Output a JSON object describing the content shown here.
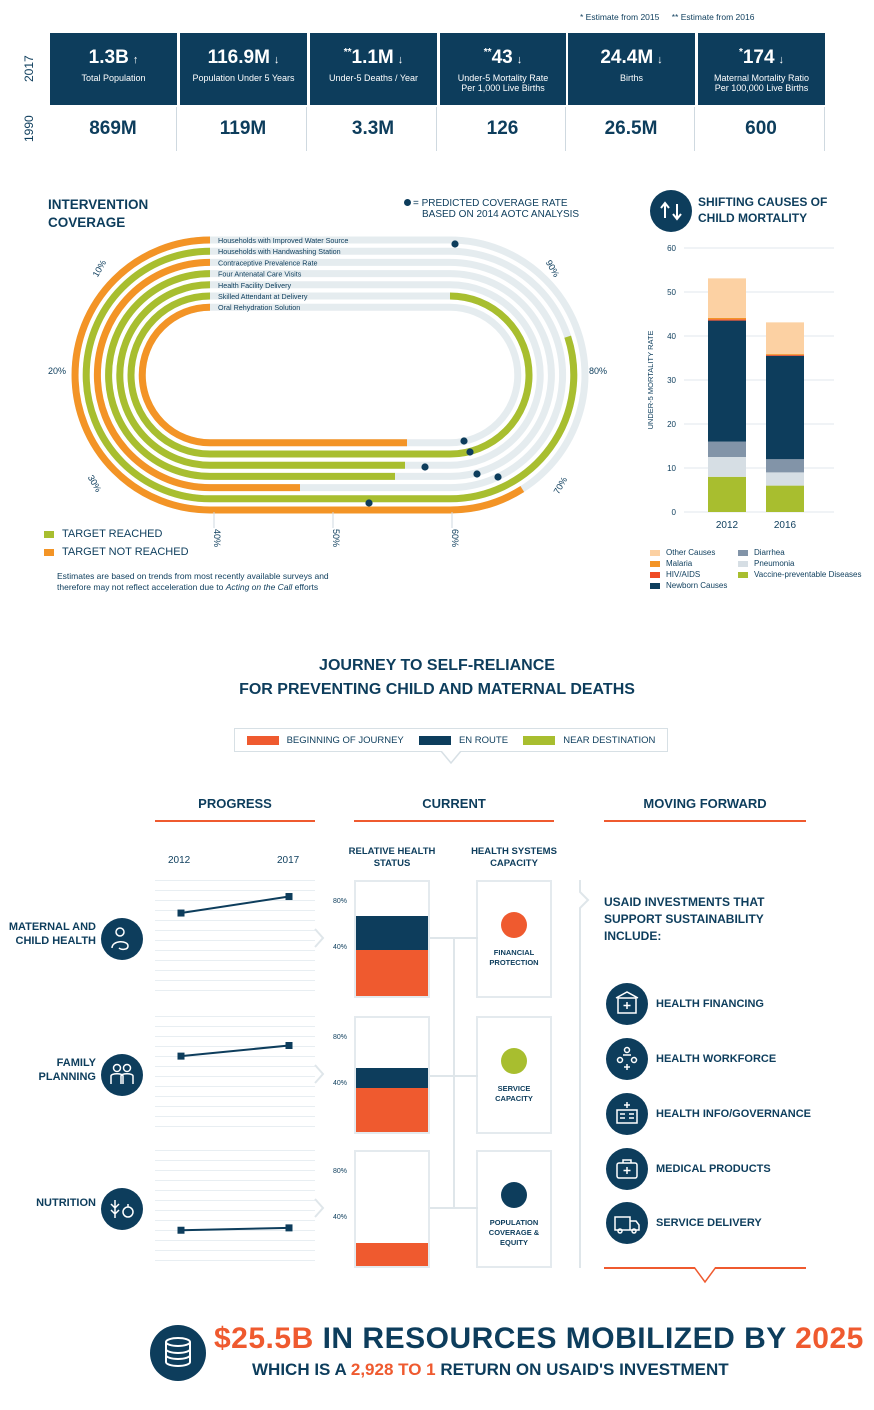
{
  "notes": {
    "single": "* Estimate from 2015",
    "double": "** Estimate from 2016"
  },
  "years": {
    "top": "2017",
    "bottom": "1990"
  },
  "stats": [
    {
      "prefix": "",
      "value": "1.3B",
      "arrow": "↑",
      "label": "Total Population",
      "label2": "",
      "past": "869M"
    },
    {
      "prefix": "",
      "value": "116.9M",
      "arrow": "↓",
      "label": "Population Under 5 Years",
      "label2": "",
      "past": "119M"
    },
    {
      "prefix": "**",
      "value": "1.1M",
      "arrow": "↓",
      "label": "Under-5 Deaths / Year",
      "label2": "",
      "past": "3.3M"
    },
    {
      "prefix": "**",
      "value": "43",
      "arrow": "↓",
      "label": "Under-5 Mortality Rate",
      "label2": "Per 1,000 Live Births",
      "past": "126"
    },
    {
      "prefix": "",
      "value": "24.4M",
      "arrow": "↓",
      "label": "Births",
      "label2": "",
      "past": "26.5M"
    },
    {
      "prefix": "*",
      "value": "174",
      "arrow": "↓",
      "label": "Maternal Mortality Ratio",
      "label2": "Per 100,000 Live Births",
      "past": "600"
    }
  ],
  "coverage": {
    "title1": "INTERVENTION",
    "title2": "COVERAGE",
    "predicted_note1": "= PREDICTED COVERAGE RATE",
    "predicted_note2": "BASED ON 2014 AOTC ANALYSIS",
    "items": [
      {
        "label": "Households with Improved Water Source",
        "status": "not_reached"
      },
      {
        "label": "Households with Handwashing Station",
        "status": "reached"
      },
      {
        "label": "Contraceptive Prevalence Rate",
        "status": "not_reached"
      },
      {
        "label": "Four Antenatal Care Visits",
        "status": "reached"
      },
      {
        "label": "Health Facility Delivery",
        "status": "reached"
      },
      {
        "label": "Skilled Attendant at Delivery",
        "status": "reached"
      },
      {
        "label": "Oral Rehydration Solution",
        "status": "not_reached"
      }
    ],
    "ticks": [
      "10%",
      "20%",
      "30%",
      "40%",
      "50%",
      "60%",
      "70%",
      "80%",
      "90%"
    ],
    "legend_reached": "TARGET REACHED",
    "legend_not_reached": "TARGET NOT REACHED",
    "footnote1": "Estimates are based on trends from most recently available surveys and",
    "footnote2_a": "therefore may not reflect acceleration due to ",
    "footnote2_b": "Acting on the Call",
    "footnote2_c": " efforts",
    "colors": {
      "reached": "#a8be2f",
      "not_reached": "#f39426",
      "track": "#e5ecef",
      "dot": "#0d3d5c"
    }
  },
  "mortality": {
    "title1": "SHIFTING CAUSES OF",
    "title2": "CHILD MORTALITY"
  },
  "chart_data": {
    "type": "bar",
    "stacked": true,
    "categories": [
      "2012",
      "2016"
    ],
    "ylabel": "UNDER-5 MORTALITY RATE",
    "ylim": [
      0,
      60
    ],
    "yticks": [
      "0",
      "10",
      "20",
      "30",
      "40",
      "50",
      "60"
    ],
    "series": [
      {
        "name": "Vaccine-preventable Diseases",
        "color": "#a8be2f",
        "values": [
          8,
          6
        ]
      },
      {
        "name": "Pneumonia",
        "color": "#d6dee4",
        "values": [
          4.5,
          3
        ]
      },
      {
        "name": "Diarrhea",
        "color": "#8294a8",
        "values": [
          3.5,
          3
        ]
      },
      {
        "name": "Newborn Causes",
        "color": "#0d3d5c",
        "values": [
          27.5,
          23.5
        ]
      },
      {
        "name": "HIV/AIDS",
        "color": "#ef4b24",
        "values": [
          0.3,
          0.2
        ]
      },
      {
        "name": "Malaria",
        "color": "#f39426",
        "values": [
          0.3,
          0.2
        ]
      },
      {
        "name": "Other Causes",
        "color": "#fcd1a3",
        "values": [
          9,
          7.2
        ]
      }
    ],
    "legend_order": [
      "Other Causes",
      "Diarrhea",
      "Malaria",
      "Pneumonia",
      "HIV/AIDS",
      "Vaccine-preventable Diseases",
      "Newborn Causes"
    ],
    "legend_position": "bottom"
  },
  "journey": {
    "title1": "JOURNEY TO SELF-RELIANCE",
    "title2": "FOR PREVENTING CHILD AND MATERNAL DEATHS",
    "legend": [
      {
        "label": "BEGINNING OF JOURNEY",
        "color": "#ef5a2f"
      },
      {
        "label": "EN ROUTE",
        "color": "#0d3d5c"
      },
      {
        "label": "NEAR DESTINATION",
        "color": "#a8be2f"
      }
    ],
    "col_progress": "PROGRESS",
    "col_current": "CURRENT",
    "col_forward": "MOVING FORWARD",
    "sub_status": "RELATIVE HEALTH STATUS",
    "sub_capacity": "HEALTH SYSTEMS CAPACITY",
    "year_start": "2012",
    "year_end": "2017",
    "pct80": "80%",
    "pct40": "40%",
    "rows": [
      {
        "label": "MATERNAL AND CHILD HEALTH",
        "progress": [
          0.72,
          0.86
        ],
        "status": {
          "orange": 0.4,
          "navy": 0.3
        },
        "cap_label": "FINANCIAL PROTECTION",
        "cap_color": "#ef5a2f"
      },
      {
        "label": "FAMILY PLANNING",
        "progress": [
          0.66,
          0.75
        ],
        "status": {
          "orange": 0.39,
          "navy": 0.17
        },
        "cap_label": "SERVICE CAPACITY",
        "cap_color": "#a8be2f"
      },
      {
        "label": "NUTRITION",
        "progress": [
          0.32,
          0.34
        ],
        "status": {
          "orange": 0.2,
          "navy": 0
        },
        "cap_label": "POPULATION COVERAGE & EQUITY",
        "cap_color": "#0d3d5c"
      }
    ],
    "forward_intro": "USAID INVESTMENTS THAT SUPPORT SUSTAINABILITY INCLUDE:",
    "investments": [
      {
        "label": "HEALTH FINANCING",
        "icon": "hospital-icon"
      },
      {
        "label": "HEALTH WORKFORCE",
        "icon": "health-workers-icon"
      },
      {
        "label": "HEALTH INFO/GOVERNANCE",
        "icon": "info-governance-icon"
      },
      {
        "label": "MEDICAL PRODUCTS",
        "icon": "medical-kit-icon"
      },
      {
        "label": "SERVICE DELIVERY",
        "icon": "ambulance-icon"
      }
    ]
  },
  "resources": {
    "amount": "$25.5B",
    "mid": " IN RESOURCES MOBILIZED BY ",
    "year": "2025",
    "line2_a": "WHICH IS A ",
    "ratio": "2,928 TO 1",
    "line2_b": " RETURN ON USAID'S INVESTMENT"
  }
}
